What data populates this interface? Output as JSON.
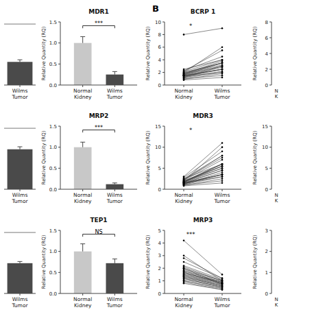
{
  "panel_label": "B",
  "chart_data": [
    {
      "type": "bar",
      "categories": [
        "Wilms\nTumor"
      ],
      "values": [
        0.55
      ],
      "errors": [
        0.05
      ],
      "colors": [
        "#4a4a4a"
      ],
      "ylim": [
        0,
        1.5
      ],
      "yticks": [],
      "reference_line": 1.45,
      "tick_labels": "x"
    },
    {
      "type": "bar",
      "title": "MDR1",
      "ylabel": "Relative Quantity (RQ)",
      "categories": [
        "Normal\nKidney",
        "Wilms\nTumor"
      ],
      "values": [
        1.0,
        0.25
      ],
      "errors": [
        0.15,
        0.07
      ],
      "colors": [
        "#c8c8c8",
        "#4a4a4a"
      ],
      "ylim": [
        0,
        1.5
      ],
      "yticks": [
        {
          "value": 0.0,
          "label": "0.0"
        },
        0.5,
        {
          "value": 1.0,
          "label": "1.0"
        },
        1.5
      ],
      "annotation": "***"
    },
    {
      "type": "line",
      "title": "BCRP 1",
      "ylabel": "Relative Quantity (RQ)",
      "categories": [
        "Normal\nKidney",
        "Wilms\nTumor"
      ],
      "color": "#3a3a3a",
      "marker": "dot",
      "ylim": [
        0,
        10
      ],
      "yticks": [
        0,
        2,
        4,
        6,
        8,
        10
      ],
      "annotation": "*",
      "series": [
        {
          "values": [
            1.5,
            2.5
          ]
        },
        {
          "values": [
            1.2,
            3.0
          ]
        },
        {
          "values": [
            2.0,
            3.5
          ]
        },
        {
          "values": [
            2.5,
            4.0
          ]
        },
        {
          "values": [
            1.8,
            3.8
          ]
        },
        {
          "values": [
            1.0,
            1.5
          ]
        },
        {
          "values": [
            0.8,
            1.2
          ]
        },
        {
          "values": [
            1.5,
            2.5
          ]
        },
        {
          "values": [
            2.2,
            5.5
          ]
        },
        {
          "values": [
            2.0,
            6.0
          ]
        },
        {
          "values": [
            1.3,
            2.5
          ]
        },
        {
          "values": [
            1.6,
            3.5
          ]
        },
        {
          "values": [
            1.4,
            2.0
          ]
        },
        {
          "values": [
            1.9,
            3.5
          ]
        },
        {
          "values": [
            2.1,
            4.0
          ]
        },
        {
          "values": [
            1.7,
            3.0
          ]
        },
        {
          "values": [
            0.9,
            1.8
          ]
        },
        {
          "values": [
            1.1,
            2.0
          ]
        },
        {
          "values": [
            2.3,
            4.5
          ]
        },
        {
          "values": [
            1.8,
            3.5
          ]
        },
        {
          "values": [
            1.5,
            2.8
          ]
        },
        {
          "values": [
            1.2,
            2.2
          ]
        },
        {
          "values": [
            1.4,
            2.5
          ]
        },
        {
          "values": [
            1.6,
            3.0
          ]
        },
        {
          "values": [
            1.8,
            3.2
          ]
        },
        {
          "values": [
            8.0,
            9.0
          ]
        }
      ]
    },
    {
      "type": "axis",
      "ylabel": "Relative Quantity (RQ)",
      "ylim": [
        0,
        8
      ],
      "yticks": [
        0,
        2,
        4,
        6,
        8
      ],
      "annotation": "N\nK",
      "tick_labels": "y"
    },
    {
      "type": "bar",
      "categories": [
        "Wilms\nTumor"
      ],
      "values": [
        0.95
      ],
      "errors": [
        0.06
      ],
      "colors": [
        "#4a4a4a"
      ],
      "ylim": [
        0,
        1.5
      ],
      "yticks": [],
      "reference_line": 1.45,
      "tick_labels": "x"
    },
    {
      "type": "bar",
      "title": "MRP2",
      "ylabel": "Relative Quantity (RQ)",
      "categories": [
        "Normal\nKidney",
        "Wilms\nTumor"
      ],
      "values": [
        1.0,
        0.12
      ],
      "errors": [
        0.12,
        0.03
      ],
      "colors": [
        "#c8c8c8",
        "#4a4a4a"
      ],
      "ylim": [
        0,
        1.5
      ],
      "yticks": [
        {
          "value": 0.0,
          "label": "0.0"
        },
        0.5,
        {
          "value": 1.0,
          "label": "1.0"
        },
        1.5
      ],
      "annotation": "***"
    },
    {
      "type": "line",
      "title": "MDR3",
      "ylabel": "Relative Quantity (RQ)",
      "categories": [
        "Normal\nKidney",
        "Wilms\nTumor"
      ],
      "color": "#3a3a3a",
      "marker": "dot",
      "ylim": [
        0,
        15
      ],
      "yticks": [
        0,
        5,
        10,
        15
      ],
      "annotation": "*",
      "series": [
        {
          "values": [
            1.5,
            3.5
          ]
        },
        {
          "values": [
            1.2,
            4.0
          ]
        },
        {
          "values": [
            2.0,
            5.5
          ]
        },
        {
          "values": [
            2.5,
            6.0
          ]
        },
        {
          "values": [
            1.8,
            5.0
          ]
        },
        {
          "values": [
            1.0,
            2.0
          ]
        },
        {
          "values": [
            0.8,
            1.5
          ]
        },
        {
          "values": [
            1.5,
            3.5
          ]
        },
        {
          "values": [
            2.2,
            8.0
          ]
        },
        {
          "values": [
            2.0,
            10.0
          ]
        },
        {
          "values": [
            1.3,
            3.5
          ]
        },
        {
          "values": [
            1.6,
            6.0
          ]
        },
        {
          "values": [
            1.4,
            3.0
          ]
        },
        {
          "values": [
            1.9,
            6.0
          ]
        },
        {
          "values": [
            2.1,
            7.0
          ]
        },
        {
          "values": [
            1.7,
            5.5
          ]
        },
        {
          "values": [
            0.9,
            2.5
          ]
        },
        {
          "values": [
            1.1,
            3.0
          ]
        },
        {
          "values": [
            2.3,
            7.5
          ]
        },
        {
          "values": [
            1.8,
            6.0
          ]
        },
        {
          "values": [
            1.5,
            4.5
          ]
        },
        {
          "values": [
            1.2,
            3.5
          ]
        },
        {
          "values": [
            1.4,
            4.5
          ]
        },
        {
          "values": [
            1.6,
            5.0
          ]
        },
        {
          "values": [
            1.8,
            5.5
          ]
        },
        {
          "values": [
            3.0,
            11.0
          ]
        },
        {
          "values": [
            2.5,
            8.0
          ]
        },
        {
          "values": [
            2.8,
            9.0
          ]
        }
      ]
    },
    {
      "type": "axis",
      "ylabel": "Relative Quantity (RQ)",
      "ylim": [
        0,
        15
      ],
      "yticks": [
        0,
        5,
        10,
        15
      ],
      "annotation": "N\nK",
      "tick_labels": "y"
    },
    {
      "type": "bar",
      "categories": [
        "Wilms\nTumor"
      ],
      "values": [
        0.72
      ],
      "errors": [
        0.04
      ],
      "colors": [
        "#4a4a4a"
      ],
      "ylim": [
        0,
        1.5
      ],
      "yticks": [],
      "reference_line": 1.45,
      "tick_labels": "x"
    },
    {
      "type": "bar",
      "title": "TEP1",
      "ylabel": "Relative Quantity (RQ)",
      "categories": [
        "Normal\nKidney",
        "Wilms\nTumor"
      ],
      "values": [
        1.0,
        0.72
      ],
      "errors": [
        0.18,
        0.1
      ],
      "colors": [
        "#c8c8c8",
        "#4a4a4a"
      ],
      "ylim": [
        0,
        1.5
      ],
      "yticks": [
        {
          "value": 0.0,
          "label": "0.0"
        },
        0.5,
        {
          "value": 1.0,
          "label": "1.0"
        },
        1.5
      ],
      "annotation": "NS"
    },
    {
      "type": "line",
      "title": "MRP3",
      "ylabel": "Relative Quantity (RQ)",
      "categories": [
        "Normal\nKidney",
        "Wilms\nTumor"
      ],
      "color": "#3a3a3a",
      "marker": "dot",
      "ylim": [
        0,
        5
      ],
      "yticks": [
        0,
        1,
        2,
        3,
        4,
        5
      ],
      "annotation": "***",
      "series": [
        {
          "values": [
            1.5,
            0.8
          ]
        },
        {
          "values": [
            1.8,
            0.9
          ]
        },
        {
          "values": [
            2.0,
            0.7
          ]
        },
        {
          "values": [
            3.0,
            1.0
          ]
        },
        {
          "values": [
            1.2,
            0.5
          ]
        },
        {
          "values": [
            0.8,
            0.3
          ]
        },
        {
          "values": [
            1.0,
            0.4
          ]
        },
        {
          "values": [
            1.3,
            0.6
          ]
        },
        {
          "values": [
            2.5,
            1.2
          ]
        },
        {
          "values": [
            1.7,
            0.8
          ]
        },
        {
          "values": [
            1.4,
            0.7
          ]
        },
        {
          "values": [
            1.9,
            1.0
          ]
        },
        {
          "values": [
            2.2,
            1.1
          ]
        },
        {
          "values": [
            1.6,
            0.9
          ]
        },
        {
          "values": [
            2.0,
            1.0
          ]
        },
        {
          "values": [
            4.2,
            1.5
          ]
        },
        {
          "values": [
            2.8,
            1.2
          ]
        },
        {
          "values": [
            1.1,
            0.5
          ]
        },
        {
          "values": [
            1.5,
            0.7
          ]
        },
        {
          "values": [
            1.8,
            0.9
          ]
        },
        {
          "values": [
            1.3,
            0.6
          ]
        },
        {
          "values": [
            1.6,
            0.8
          ]
        },
        {
          "values": [
            1.2,
            0.5
          ]
        },
        {
          "values": [
            1.0,
            0.4
          ]
        },
        {
          "values": [
            0.9,
            0.3
          ]
        },
        {
          "values": [
            1.4,
            0.6
          ]
        },
        {
          "values": [
            1.7,
            0.8
          ]
        },
        {
          "values": [
            2.1,
            1.0
          ]
        }
      ]
    },
    {
      "type": "axis",
      "ylabel": "Relative Quantity (RQ)",
      "ylim": [
        0,
        3
      ],
      "yticks": [
        0,
        1,
        2,
        3
      ],
      "annotation": "N\nK",
      "tick_labels": "y"
    }
  ]
}
